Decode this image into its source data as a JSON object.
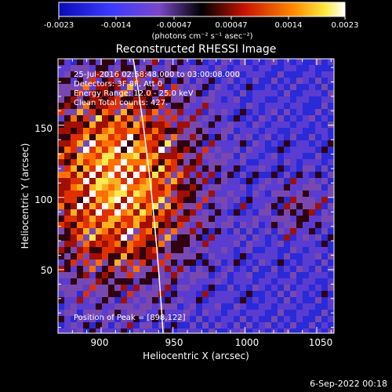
{
  "colorbar": {
    "tick_labels": [
      "-0.0023",
      "-0.0014",
      "-0.00047",
      "0.00047",
      "0.0014",
      "0.0023"
    ],
    "units_label": "(photons cm⁻² s⁻¹ asec⁻²)"
  },
  "plot": {
    "title": "Reconstructed RHESSI Image",
    "xlabel": "Heliocentric X (arcsec)",
    "ylabel": "Heliocentric Y (arcsec)",
    "x_ticks": [
      "900",
      "950",
      "1000",
      "1050"
    ],
    "y_ticks": [
      "50",
      "100",
      "150"
    ],
    "xlim": [
      870,
      1062
    ],
    "ylim": [
      6,
      196
    ]
  },
  "annotations": {
    "time_range": "25-Jul-2016 02:58:48.000 to 03:00:08.000",
    "detectors": "Detectors: 3F 8F, Att 0",
    "energy_range": "Energy Range: 12.0 - 25.0 keV",
    "clean_counts": "Clean     Total counts: 427.",
    "peak": "Position of Peak = [898,122]"
  },
  "footer": {
    "date": "6-Sep-2022 00:18"
  }
}
